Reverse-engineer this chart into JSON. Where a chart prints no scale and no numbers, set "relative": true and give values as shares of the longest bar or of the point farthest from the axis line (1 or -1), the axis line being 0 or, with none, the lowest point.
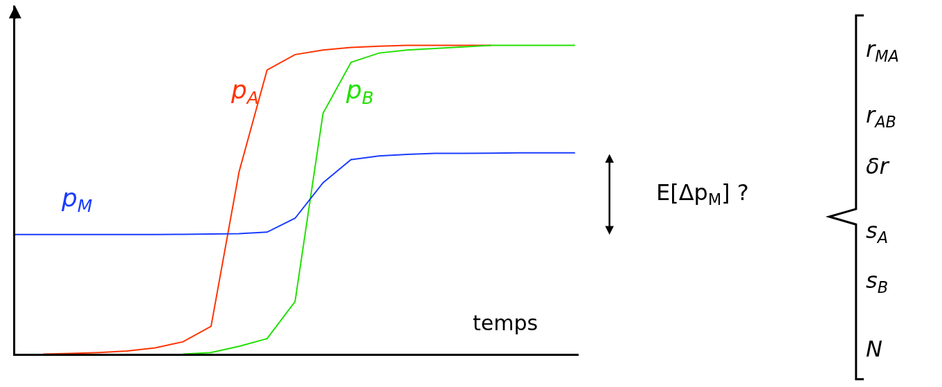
{
  "chart_data": {
    "type": "line",
    "relative": true,
    "xlabel": "temps",
    "legend": false,
    "tick_labels": false,
    "categories": [
      null,
      null,
      null,
      null,
      null,
      null,
      null,
      null,
      null,
      null,
      null,
      null,
      null,
      null,
      null,
      null,
      null,
      null,
      null,
      null,
      null
    ],
    "series": [
      {
        "name": "p$_{A}$",
        "color": "#ff3300",
        "values": [
          null,
          0,
          0.002,
          0.005,
          0.01,
          0.02,
          0.04,
          0.09,
          0.59,
          0.92,
          0.97,
          0.985,
          0.993,
          0.997,
          1,
          1,
          1,
          1,
          null,
          null,
          null
        ]
      },
      {
        "name": "p$_{B}$",
        "color": "#22e000",
        "values": [
          null,
          null,
          null,
          null,
          null,
          null,
          0,
          0.005,
          0.025,
          0.05,
          0.17,
          0.78,
          0.945,
          0.975,
          0.985,
          0.99,
          0.995,
          1,
          1,
          1,
          1
        ]
      },
      {
        "name": "p$_{M}$",
        "color": "#1a3cff",
        "values": [
          0.387,
          0.387,
          0.387,
          0.387,
          0.387,
          0.387,
          0.388,
          0.389,
          0.39,
          0.395,
          0.44,
          0.555,
          0.63,
          0.642,
          0.647,
          0.65,
          0.65,
          0.651,
          0.652,
          0.652,
          0.652
        ]
      }
    ],
    "annotations": [
      "E[Δp$_{M}$] ?",
      "r$_{MA}$",
      "r$_{AB}$",
      "δr",
      "s$_{A}$",
      "s$_{B}$",
      "N"
    ]
  }
}
